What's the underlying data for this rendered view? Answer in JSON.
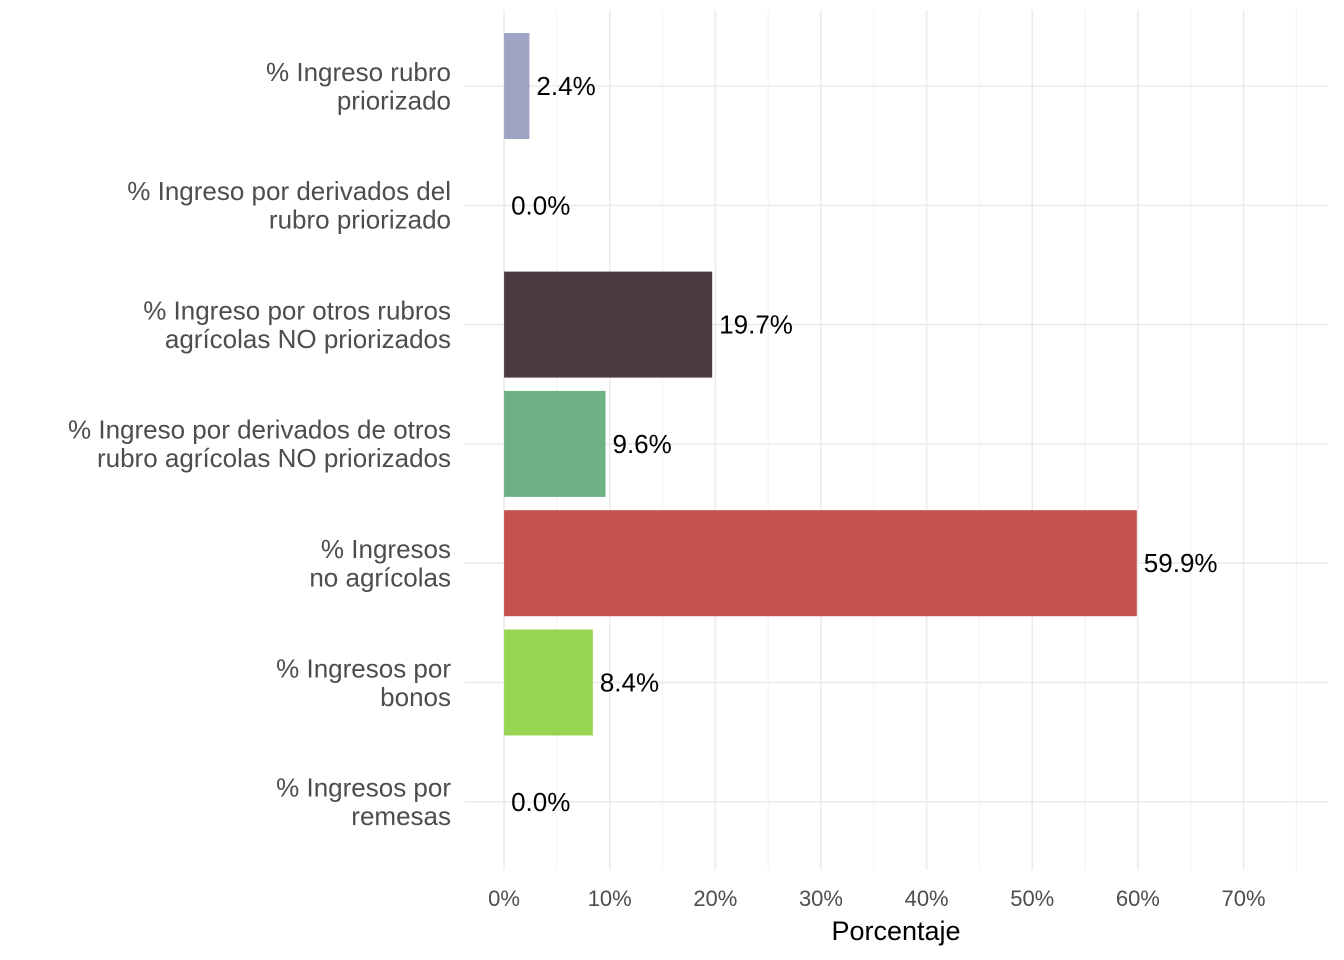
{
  "chart_data": {
    "type": "bar",
    "orientation": "horizontal",
    "categories": [
      [
        "% Ingreso rubro",
        "priorizado"
      ],
      [
        "% Ingreso por derivados del",
        "rubro priorizado"
      ],
      [
        "% Ingreso por otros rubros",
        "agrícolas NO priorizados"
      ],
      [
        "% Ingreso por derivados de otros",
        "rubro agrícolas NO priorizados"
      ],
      [
        "% Ingresos",
        "no agrícolas"
      ],
      [
        "% Ingresos por",
        "bonos"
      ],
      [
        "% Ingresos por",
        "remesas"
      ]
    ],
    "values": [
      2.4,
      0.0,
      19.7,
      9.6,
      59.9,
      8.4,
      0.0
    ],
    "value_labels": [
      "2.4%",
      "0.0%",
      "19.7%",
      "9.6%",
      "59.9%",
      "8.4%",
      "0.0%"
    ],
    "colors": [
      "#9fa3c4",
      "#3b3a6e",
      "#4d3b42",
      "#6db184",
      "#c4514f",
      "#97d452",
      "#b8c45a"
    ],
    "xlabel": "Porcentaje",
    "ylabel": "",
    "title": "",
    "xlim": [
      -3.7,
      78
    ],
    "xticks": [
      0,
      10,
      20,
      30,
      40,
      50,
      60,
      70
    ],
    "xtick_labels": [
      "0%",
      "10%",
      "20%",
      "30%",
      "40%",
      "50%",
      "60%",
      "70%"
    ],
    "grid": true,
    "legend": "none"
  }
}
